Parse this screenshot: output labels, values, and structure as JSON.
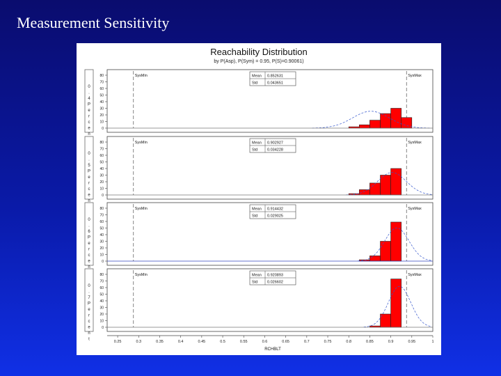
{
  "slide": {
    "title": "Measurement Sensitivity"
  },
  "chart_data": {
    "type": "bar",
    "title": "Reachability Distribution",
    "subtitle": "by P(Asp), P(Sym) = 0.95, P(S)=0.90061)",
    "xlabel": "RCHBLT",
    "ylabel_letters": [
      "P",
      "e",
      "r",
      "c",
      "e",
      "n",
      "t"
    ],
    "xlim": [
      0.225,
      1.0
    ],
    "x_ticks": [
      "0.25",
      "0.3",
      "0.35",
      "0.4",
      "0.45",
      "0.5",
      "0.55",
      "0.6",
      "0.65",
      "0.7",
      "0.75",
      "0.8",
      "0.85",
      "0.9",
      "0.95",
      "1"
    ],
    "y_ticks": [
      "0",
      "10",
      "20",
      "30",
      "40",
      "50",
      "60",
      "70",
      "80"
    ],
    "ylim": [
      0,
      80
    ],
    "sysmin_label": "SysMin",
    "sysmax_label": "SysMax",
    "sysmin_x": 0.2875,
    "sysmax_x": 0.9375,
    "bin_width": 0.025,
    "panels": [
      {
        "group_label": "0.4",
        "mean_label": "Mean",
        "mean_value": "0.852631",
        "std_label": "Std",
        "std_value": "0.043651",
        "bins": [
          {
            "x": 0.8,
            "value": 2
          },
          {
            "x": 0.825,
            "value": 5
          },
          {
            "x": 0.85,
            "value": 12
          },
          {
            "x": 0.875,
            "value": 22
          },
          {
            "x": 0.9,
            "value": 30
          },
          {
            "x": 0.925,
            "value": 16
          }
        ]
      },
      {
        "group_label": "0.5",
        "mean_label": "Mean",
        "mean_value": "0.902927",
        "std_label": "Std",
        "std_value": "0.034228",
        "bins": [
          {
            "x": 0.8,
            "value": 2
          },
          {
            "x": 0.825,
            "value": 8
          },
          {
            "x": 0.85,
            "value": 18
          },
          {
            "x": 0.875,
            "value": 30
          },
          {
            "x": 0.9,
            "value": 40
          }
        ]
      },
      {
        "group_label": "0.6",
        "mean_label": "Mean",
        "mean_value": "0.914432",
        "std_label": "Std",
        "std_value": "0.029025",
        "bins": [
          {
            "x": 0.825,
            "value": 2
          },
          {
            "x": 0.85,
            "value": 8
          },
          {
            "x": 0.875,
            "value": 30
          },
          {
            "x": 0.9,
            "value": 59
          }
        ]
      },
      {
        "group_label": "0.7",
        "mean_label": "Mean",
        "mean_value": "0.920893",
        "std_label": "Std",
        "std_value": "0.026602",
        "bins": [
          {
            "x": 0.85,
            "value": 2
          },
          {
            "x": 0.875,
            "value": 20
          },
          {
            "x": 0.9,
            "value": 73
          }
        ]
      }
    ]
  }
}
